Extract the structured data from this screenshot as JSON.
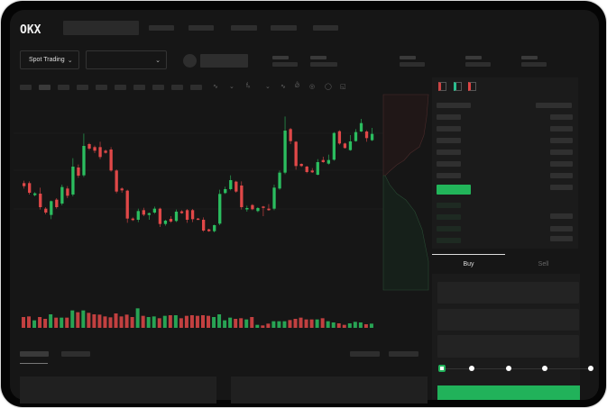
{
  "brand": {
    "logo": "OKX"
  },
  "toolbar": {
    "market_selector": "Spot Trading"
  },
  "order_form": {
    "buy_tab": "Buy",
    "sell_tab": "Sell",
    "leverage_steps": 5,
    "leverage_selected": 0
  },
  "colors": {
    "up": "#2bbd5f",
    "down": "#e04848",
    "background": "#161616",
    "accent": "#21b25a"
  },
  "icons": [
    "chevron-down-icon",
    "indicator-icon",
    "draw-line-icon",
    "orderbook-both-icon",
    "orderbook-bids-icon",
    "orderbook-asks-icon"
  ],
  "chart_data": {
    "type": "candlestick",
    "columns": [
      "open",
      "high",
      "low",
      "close"
    ],
    "candles": [
      [
        250,
        258,
        232,
        240
      ],
      [
        250,
        256,
        212,
        218
      ],
      [
        210,
        220,
        206,
        216
      ],
      [
        215,
        235,
        162,
        170
      ],
      [
        165,
        170,
        146,
        152
      ],
      [
        144,
        192,
        130,
        190
      ],
      [
        195,
        200,
        165,
        170
      ],
      [
        182,
        245,
        176,
        237
      ],
      [
        232,
        240,
        200,
        208
      ],
      [
        212,
        333,
        206,
        305
      ],
      [
        302,
        312,
        268,
        275
      ],
      [
        276,
        415,
        270,
        374
      ],
      [
        380,
        384,
        360,
        365
      ],
      [
        370,
        375,
        350,
        358
      ],
      [
        370,
        388,
        330,
        337
      ],
      [
        358,
        362,
        348,
        351
      ],
      [
        362,
        370,
        288,
        292
      ],
      [
        292,
        296,
        216,
        222
      ],
      [
        232,
        236,
        218,
        226
      ],
      [
        225,
        228,
        118,
        132
      ],
      [
        132,
        136,
        124,
        127
      ],
      [
        128,
        165,
        120,
        157
      ],
      [
        160,
        168,
        140,
        145
      ],
      [
        144,
        152,
        128,
        150
      ],
      [
        152,
        172,
        148,
        165
      ],
      [
        165,
        168,
        104,
        114
      ],
      [
        114,
        128,
        108,
        125
      ],
      [
        131,
        140,
        118,
        122
      ],
      [
        124,
        162,
        120,
        155
      ],
      [
        156,
        160,
        148,
        150
      ],
      [
        160,
        164,
        118,
        128
      ],
      [
        160,
        164,
        120,
        130
      ],
      [
        132,
        134,
        128,
        130
      ],
      [
        128,
        136,
        88,
        92
      ],
      [
        96,
        98,
        88,
        90
      ],
      [
        90,
        112,
        86,
        110
      ],
      [
        115,
        228,
        110,
        214
      ],
      [
        217,
        238,
        214,
        230
      ],
      [
        230,
        276,
        226,
        260
      ],
      [
        255,
        258,
        218,
        222
      ],
      [
        242,
        256,
        162,
        170
      ],
      [
        163,
        175,
        155,
        167
      ],
      [
        177,
        180,
        160,
        163
      ],
      [
        157,
        170,
        153,
        167
      ],
      [
        172,
        174,
        140,
        168
      ],
      [
        165,
        180,
        158,
        160
      ],
      [
        165,
        245,
        160,
        235
      ],
      [
        232,
        292,
        228,
        285
      ],
      [
        285,
        472,
        280,
        425
      ],
      [
        430,
        434,
        380,
        390
      ],
      [
        388,
        390,
        295,
        307
      ],
      [
        314,
        316,
        304,
        307
      ],
      [
        305,
        308,
        283,
        287
      ],
      [
        292,
        300,
        284,
        286
      ],
      [
        278,
        330,
        276,
        320
      ],
      [
        327,
        338,
        318,
        320
      ],
      [
        315,
        345,
        312,
        327
      ],
      [
        328,
        420,
        325,
        417
      ],
      [
        423,
        426,
        378,
        382
      ],
      [
        382,
        385,
        365,
        367
      ],
      [
        360,
        410,
        358,
        389
      ],
      [
        390,
        430,
        388,
        420
      ],
      [
        422,
        464,
        420,
        450
      ],
      [
        422,
        426,
        388,
        400
      ],
      [
        393,
        434,
        390,
        414
      ]
    ],
    "volumes": [
      36,
      38,
      25,
      36,
      30,
      45,
      34,
      34,
      34,
      58,
      52,
      58,
      50,
      45,
      44,
      38,
      35,
      48,
      38,
      44,
      36,
      65,
      40,
      36,
      38,
      32,
      40,
      42,
      42,
      32,
      40,
      42,
      40,
      42,
      40,
      36,
      45,
      25,
      34,
      30,
      32,
      28,
      36,
      10,
      8,
      14,
      22,
      22,
      22,
      26,
      30,
      34,
      28,
      28,
      28,
      32,
      22,
      18,
      15,
      10,
      15,
      20,
      18,
      12,
      14
    ]
  }
}
